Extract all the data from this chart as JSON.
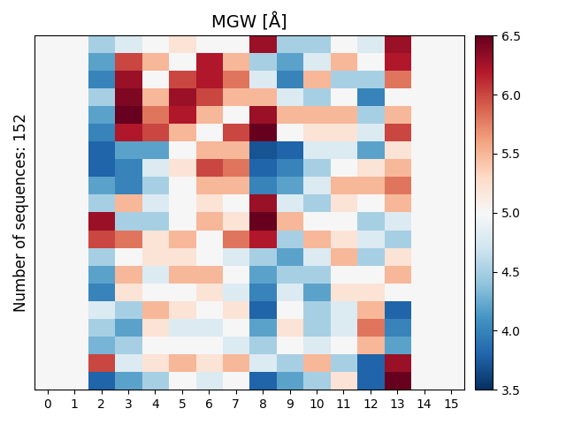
{
  "title": "MGW [Å]",
  "ylabel": "Number of sequences: 152",
  "xlabel": "",
  "xtick_labels": [
    "0",
    "1",
    "2",
    "3",
    "4",
    "5",
    "6",
    "7",
    "8",
    "9",
    "10",
    "11",
    "12",
    "13",
    "14",
    "15"
  ],
  "vmin": 3.5,
  "vmax": 6.5,
  "colorbar_ticks": [
    3.5,
    4.0,
    4.5,
    5.0,
    5.5,
    6.0,
    6.5
  ],
  "n_rows": 20,
  "n_cols": 16,
  "heatmap_data": [
    [
      5.0,
      5.0,
      4.5,
      4.8,
      5.0,
      5.2,
      5.0,
      5.0,
      6.3,
      4.5,
      4.5,
      5.0,
      4.8,
      6.3,
      5.0,
      5.0
    ],
    [
      5.0,
      5.0,
      4.2,
      6.0,
      5.5,
      5.0,
      6.2,
      5.5,
      4.5,
      4.2,
      4.8,
      5.5,
      5.0,
      6.2,
      5.0,
      5.0
    ],
    [
      5.0,
      5.0,
      4.0,
      6.3,
      5.0,
      6.0,
      6.2,
      5.8,
      4.8,
      4.0,
      5.5,
      4.5,
      4.5,
      5.8,
      5.0,
      5.0
    ],
    [
      5.0,
      5.0,
      4.5,
      6.4,
      5.5,
      6.3,
      6.0,
      5.5,
      5.5,
      4.8,
      4.5,
      5.0,
      4.0,
      5.0,
      5.0,
      5.0
    ],
    [
      5.0,
      5.0,
      4.2,
      6.5,
      5.8,
      6.2,
      5.5,
      5.0,
      6.3,
      5.5,
      5.5,
      5.5,
      4.5,
      5.5,
      5.0,
      5.0
    ],
    [
      5.0,
      5.0,
      4.0,
      6.2,
      6.0,
      5.5,
      5.0,
      6.0,
      6.5,
      5.0,
      5.2,
      5.2,
      4.8,
      6.0,
      5.0,
      5.0
    ],
    [
      5.0,
      5.0,
      3.8,
      4.2,
      4.2,
      5.0,
      5.5,
      5.5,
      3.7,
      3.8,
      4.8,
      4.8,
      4.2,
      5.2,
      5.0,
      5.0
    ],
    [
      5.0,
      5.0,
      3.8,
      4.0,
      4.8,
      5.2,
      6.0,
      5.8,
      3.8,
      4.0,
      4.5,
      5.0,
      5.2,
      5.5,
      5.0,
      5.0
    ],
    [
      5.0,
      5.0,
      4.2,
      4.0,
      4.5,
      5.0,
      5.5,
      5.5,
      4.0,
      4.2,
      4.8,
      5.5,
      5.5,
      5.8,
      5.0,
      5.0
    ],
    [
      5.0,
      5.0,
      4.5,
      5.5,
      4.8,
      5.0,
      5.2,
      5.0,
      6.3,
      4.8,
      4.5,
      5.2,
      5.0,
      5.5,
      5.0,
      5.0
    ],
    [
      5.0,
      5.0,
      6.3,
      4.5,
      4.5,
      5.0,
      5.5,
      5.2,
      6.5,
      5.5,
      5.0,
      5.0,
      4.5,
      4.8,
      5.0,
      5.0
    ],
    [
      5.0,
      5.0,
      6.0,
      5.8,
      5.2,
      5.5,
      5.0,
      5.8,
      6.2,
      4.5,
      5.5,
      5.2,
      4.8,
      4.5,
      5.0,
      5.0
    ],
    [
      5.0,
      5.0,
      4.5,
      5.0,
      5.2,
      5.2,
      5.0,
      4.8,
      4.5,
      4.2,
      4.8,
      5.5,
      4.5,
      5.2,
      5.0,
      5.0
    ],
    [
      5.0,
      5.0,
      4.2,
      5.5,
      4.8,
      5.5,
      5.5,
      5.0,
      4.2,
      4.5,
      4.5,
      5.0,
      5.0,
      5.5,
      5.0,
      5.0
    ],
    [
      5.0,
      5.0,
      4.0,
      5.2,
      5.0,
      5.0,
      5.2,
      4.8,
      4.0,
      4.8,
      4.2,
      5.2,
      5.2,
      5.0,
      5.0,
      5.0
    ],
    [
      5.0,
      5.0,
      4.8,
      4.5,
      5.5,
      5.2,
      5.0,
      5.2,
      3.8,
      5.0,
      4.5,
      4.8,
      5.5,
      3.8,
      5.0,
      5.0
    ],
    [
      5.0,
      5.0,
      4.5,
      4.2,
      5.2,
      4.8,
      4.8,
      5.0,
      4.2,
      5.2,
      4.5,
      4.8,
      5.8,
      4.0,
      5.0,
      5.0
    ],
    [
      5.0,
      5.0,
      4.3,
      4.5,
      5.0,
      5.0,
      5.0,
      4.8,
      4.5,
      5.0,
      4.8,
      5.0,
      5.5,
      4.2,
      5.0,
      5.0
    ],
    [
      5.0,
      5.0,
      6.0,
      4.8,
      5.2,
      5.5,
      5.2,
      5.5,
      4.8,
      4.5,
      5.5,
      4.5,
      3.8,
      6.3,
      5.0,
      5.0
    ],
    [
      5.0,
      5.0,
      3.8,
      4.2,
      4.5,
      5.0,
      4.8,
      5.0,
      3.8,
      4.2,
      4.5,
      5.2,
      3.8,
      6.5,
      5.0,
      5.0
    ]
  ],
  "figsize": [
    6.4,
    4.8
  ],
  "dpi": 100,
  "title_fontsize": 14,
  "label_fontsize": 12,
  "tick_fontsize": 10
}
